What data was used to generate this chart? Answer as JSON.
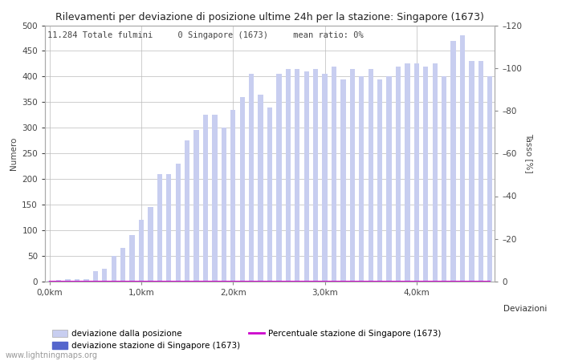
{
  "title": "Rilevamenti per deviazione di posizione ultime 24h per la stazione: Singapore (1673)",
  "ylabel_left": "Numero",
  "ylabel_right": "Tasso [%]",
  "xlabel_right": "Deviazioni",
  "subtitle": "11.284 Totale fulmini     0 Singapore (1673)     mean ratio: 0%",
  "watermark": "www.lightningmaps.org",
  "bar_values": [
    2,
    3,
    5,
    5,
    5,
    20,
    25,
    50,
    65,
    90,
    120,
    145,
    210,
    210,
    230,
    275,
    295,
    325,
    325,
    300,
    335,
    360,
    405,
    365,
    340,
    405,
    415,
    415,
    410,
    415,
    405,
    420,
    395,
    415,
    400,
    415,
    395,
    400,
    420,
    425,
    425,
    420,
    425,
    400,
    470,
    480,
    430,
    430,
    400
  ],
  "station_bar_values": [
    0,
    0,
    0,
    0,
    0,
    0,
    0,
    0,
    0,
    0,
    0,
    0,
    0,
    0,
    0,
    0,
    0,
    0,
    0,
    0,
    0,
    0,
    0,
    0,
    0,
    0,
    0,
    0,
    0,
    0,
    0,
    0,
    0,
    0,
    0,
    0,
    0,
    0,
    0,
    0,
    0,
    0,
    0,
    0,
    0,
    0,
    0,
    0,
    0
  ],
  "percentage_values": [
    0,
    0,
    0,
    0,
    0,
    0,
    0,
    0,
    0,
    0,
    0,
    0,
    0,
    0,
    0,
    0,
    0,
    0,
    0,
    0,
    0,
    0,
    0,
    0,
    0,
    0,
    0,
    0,
    0,
    0,
    0,
    0,
    0,
    0,
    0,
    0,
    0,
    0,
    0,
    0,
    0,
    0,
    0,
    0,
    0,
    0,
    0,
    0,
    0
  ],
  "x_tick_positions": [
    0,
    10,
    20,
    30,
    40
  ],
  "x_tick_labels": [
    "0,0km",
    "1,0km",
    "2,0km",
    "3,0km",
    "4,0km"
  ],
  "ylim_left": [
    0,
    500
  ],
  "ylim_right": [
    0,
    120
  ],
  "yticks_left": [
    0,
    50,
    100,
    150,
    200,
    250,
    300,
    350,
    400,
    450,
    500
  ],
  "yticks_right": [
    0,
    20,
    40,
    60,
    80,
    100,
    120
  ],
  "ytick_right_labels": [
    "0",
    "–20",
    "–40",
    "–60",
    "–80",
    "–100",
    "–120"
  ],
  "bar_color_light": "#c8cef0",
  "bar_color_dark": "#5566cc",
  "line_color": "#cc00cc",
  "grid_color": "#bbbbbb",
  "bg_color": "#ffffff",
  "title_fontsize": 9,
  "subtitle_fontsize": 7.5,
  "label_fontsize": 7.5,
  "tick_fontsize": 7.5,
  "legend_fontsize": 7.5,
  "watermark_fontsize": 7
}
